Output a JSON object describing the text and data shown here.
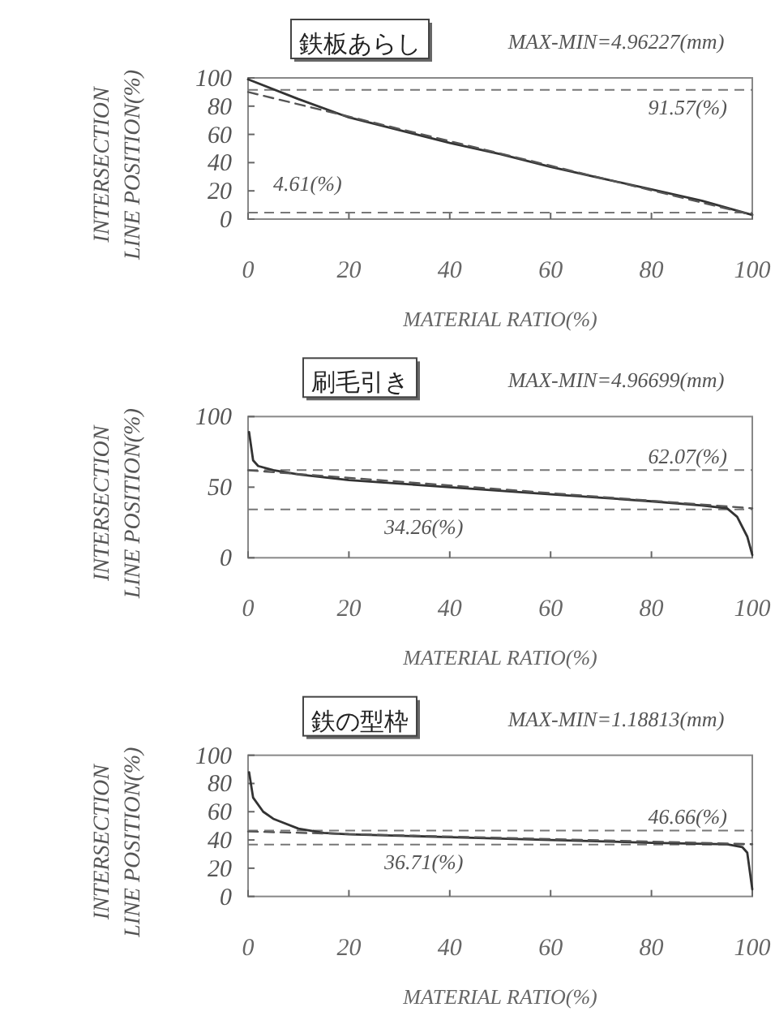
{
  "chart_data": [
    {
      "type": "line",
      "title": "鉄板あらし",
      "subtitle": "MAX-MIN=4.96227(mm)",
      "xlabel": "MATERIAL RATIO(%)",
      "ylabel": "INTERSECTION LINE POSITION(%)",
      "xlim": [
        0,
        100
      ],
      "ylim": [
        0,
        100
      ],
      "xticks": [
        0,
        20,
        40,
        60,
        80,
        100
      ],
      "yticks": [
        0,
        20,
        40,
        60,
        80,
        100
      ],
      "marker": "none",
      "series": [
        {
          "color": "#333333",
          "line_style": "solid",
          "x": [
            0,
            10,
            20,
            30,
            40,
            50,
            60,
            70,
            80,
            90,
            100
          ],
          "values": [
            99,
            85,
            72,
            63,
            54,
            46,
            37,
            29,
            21,
            13,
            3
          ]
        },
        {
          "color": "#555555",
          "line_style": "dashed",
          "x": [
            0,
            100
          ],
          "values": [
            90,
            3
          ]
        }
      ],
      "ref_lines": [
        {
          "axis": "y",
          "value": 91.57,
          "label": "91.57(%)",
          "line_style": "dashed",
          "color": "#777777"
        },
        {
          "axis": "y",
          "value": 4.61,
          "label": "4.61(%)",
          "line_style": "dashed",
          "color": "#777777"
        }
      ]
    },
    {
      "type": "line",
      "title": "刷毛引き",
      "subtitle": "MAX-MIN=4.96699(mm)",
      "xlabel": "MATERIAL RATIO(%)",
      "ylabel": "INTERSECTION LINE POSITION(%)",
      "xlim": [
        0,
        100
      ],
      "ylim": [
        0,
        100
      ],
      "xticks": [
        0,
        20,
        40,
        60,
        80,
        100
      ],
      "yticks": [
        0,
        50,
        100
      ],
      "marker": "none",
      "series": [
        {
          "color": "#333333",
          "line_style": "solid",
          "x": [
            0.2,
            1,
            2,
            5,
            10,
            20,
            40,
            60,
            80,
            90,
            95,
            97,
            99,
            100
          ],
          "values": [
            89,
            69,
            65,
            62,
            59,
            55,
            50,
            45,
            40,
            37,
            35,
            29,
            15,
            2
          ]
        },
        {
          "color": "#555555",
          "line_style": "dashed",
          "x": [
            0,
            100
          ],
          "values": [
            62,
            35
          ]
        }
      ],
      "ref_lines": [
        {
          "axis": "y",
          "value": 62.07,
          "label": "62.07(%)",
          "line_style": "dashed",
          "color": "#777777"
        },
        {
          "axis": "y",
          "value": 34.26,
          "label": "34.26(%)",
          "line_style": "dashed",
          "color": "#777777"
        }
      ]
    },
    {
      "type": "line",
      "title": "鉄の型枠",
      "subtitle": "MAX-MIN=1.18813(mm)",
      "xlabel": "MATERIAL RATIO(%)",
      "ylabel": "INTERSECTION LINE POSITION(%)",
      "xlim": [
        0,
        100
      ],
      "ylim": [
        0,
        100
      ],
      "xticks": [
        0,
        20,
        40,
        60,
        80,
        100
      ],
      "yticks": [
        0,
        20,
        40,
        60,
        80,
        100
      ],
      "marker": "none",
      "series": [
        {
          "color": "#333333",
          "line_style": "solid",
          "x": [
            0.2,
            1,
            3,
            5,
            10,
            15,
            20,
            30,
            40,
            60,
            80,
            95,
            98,
            99,
            100
          ],
          "values": [
            88,
            70,
            60,
            55,
            48,
            45,
            44,
            43,
            42,
            40,
            38,
            37,
            35,
            31,
            5
          ]
        },
        {
          "color": "#555555",
          "line_style": "dashed",
          "x": [
            0,
            100
          ],
          "values": [
            46,
            37
          ]
        }
      ],
      "ref_lines": [
        {
          "axis": "y",
          "value": 46.66,
          "label": "46.66(%)",
          "line_style": "dashed",
          "color": "#777777"
        },
        {
          "axis": "y",
          "value": 36.71,
          "label": "36.71(%)",
          "line_style": "dashed",
          "color": "#777777"
        }
      ]
    }
  ]
}
